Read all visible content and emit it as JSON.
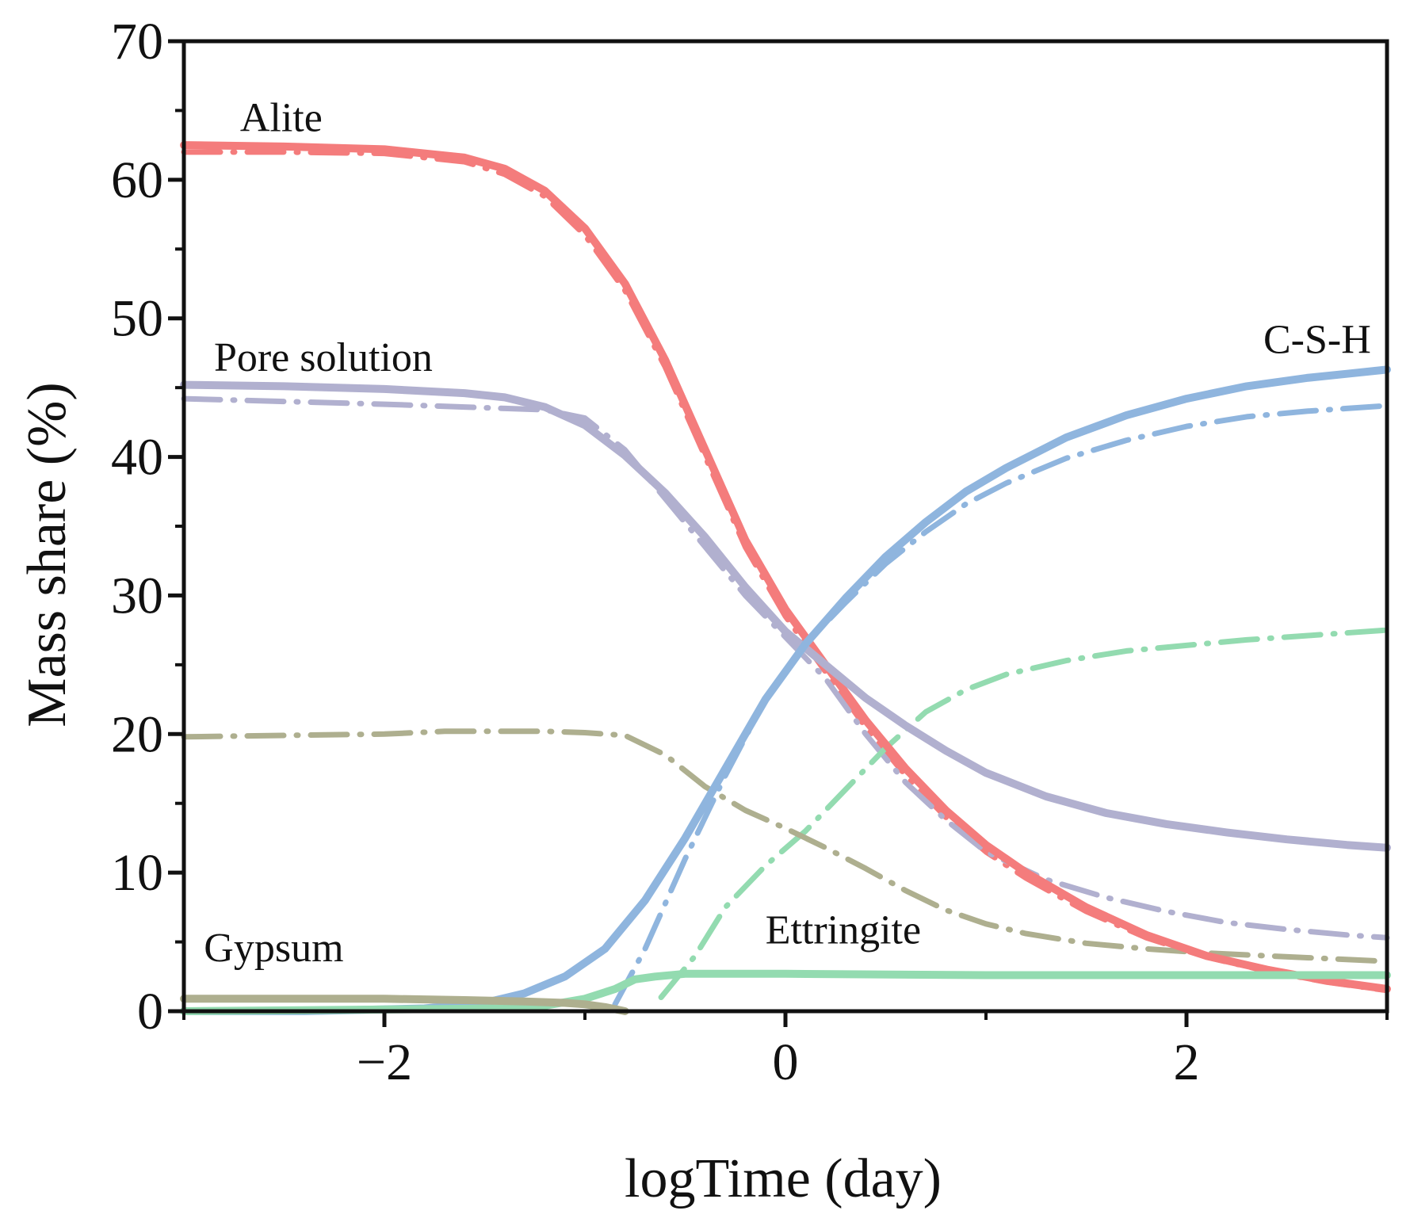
{
  "chart_data": {
    "type": "line",
    "xlabel": "logTime (day)",
    "ylabel": "Mass share (%)",
    "xlim": [
      -3,
      3
    ],
    "ylim": [
      0,
      70
    ],
    "xticks": [
      -2,
      0,
      2
    ],
    "xtick_labels": [
      "−2",
      "0",
      "2"
    ],
    "yticks": [
      0,
      10,
      20,
      30,
      40,
      50,
      60,
      70
    ],
    "ytick_labels": [
      "0",
      "10",
      "20",
      "30",
      "40",
      "50",
      "60",
      "70"
    ],
    "x_minor_ticks": [
      -3,
      -1,
      1,
      3
    ],
    "y_minor_ticks": [
      5,
      15,
      25,
      35,
      45,
      55,
      65
    ],
    "colors": {
      "alite": "#f47c7c",
      "pore_solution": "#b1b0cf",
      "csh": "#8fb5de",
      "ettringite": "#93dbb0",
      "gypsum": "#aeaf8f",
      "axis": "#111111"
    },
    "labels": [
      {
        "text": "Alite",
        "x": -2.72,
        "y": 63.5
      },
      {
        "text": "Pore solution",
        "x": -2.85,
        "y": 46.2
      },
      {
        "text": "C-S-H",
        "x": 2.92,
        "y": 47.5
      },
      {
        "text": "Ettringite",
        "x": -0.1,
        "y": 4.9
      },
      {
        "text": "Gypsum",
        "x": -2.9,
        "y": 3.6
      }
    ],
    "series": [
      {
        "name": "Alite",
        "color": "alite",
        "style": "solid",
        "x": [
          -3,
          -2.5,
          -2,
          -1.6,
          -1.4,
          -1.2,
          -1.0,
          -0.8,
          -0.6,
          -0.4,
          -0.2,
          0,
          0.2,
          0.4,
          0.6,
          0.8,
          1.0,
          1.2,
          1.5,
          1.8,
          2.1,
          2.4,
          2.7,
          3.0
        ],
        "y": [
          62.5,
          62.4,
          62.2,
          61.6,
          60.8,
          59.2,
          56.5,
          52.5,
          47.0,
          40.5,
          34.0,
          29.0,
          25.0,
          21.0,
          17.5,
          14.5,
          12.0,
          10.0,
          7.5,
          5.5,
          4.0,
          3.0,
          2.2,
          1.6
        ]
      },
      {
        "name": "Alite",
        "color": "alite",
        "style": "dashdot",
        "x": [
          -3,
          -2.5,
          -2,
          -1.6,
          -1.4,
          -1.2,
          -1.0,
          -0.8,
          -0.6,
          -0.4,
          -0.2,
          0,
          0.2,
          0.4,
          0.6,
          0.8,
          1.0,
          1.2,
          1.5,
          1.8,
          2.1,
          2.4,
          2.7,
          3.0
        ],
        "y": [
          62.0,
          62.0,
          61.9,
          61.3,
          60.4,
          58.8,
          56.0,
          52.0,
          46.5,
          40.0,
          33.5,
          28.5,
          24.5,
          20.5,
          17.0,
          14.0,
          11.5,
          9.6,
          7.2,
          5.3,
          3.9,
          2.9,
          2.1,
          1.5
        ]
      },
      {
        "name": "Pore solution",
        "color": "pore_solution",
        "style": "solid",
        "x": [
          -3,
          -2.5,
          -2,
          -1.6,
          -1.4,
          -1.2,
          -1.0,
          -0.8,
          -0.6,
          -0.4,
          -0.2,
          0,
          0.2,
          0.4,
          0.6,
          0.8,
          1.0,
          1.3,
          1.6,
          1.9,
          2.2,
          2.5,
          2.8,
          3.0
        ],
        "y": [
          45.2,
          45.1,
          44.9,
          44.6,
          44.3,
          43.6,
          42.3,
          40.1,
          37.4,
          34.2,
          30.6,
          27.4,
          25.0,
          22.6,
          20.6,
          18.8,
          17.2,
          15.5,
          14.3,
          13.5,
          12.9,
          12.4,
          12.0,
          11.8
        ]
      },
      {
        "name": "Pore solution",
        "color": "pore_solution",
        "style": "dashdot",
        "x": [
          -3,
          -2.5,
          -2,
          -1.6,
          -1.4,
          -1.2,
          -1.0,
          -0.8,
          -0.6,
          -0.4,
          -0.2,
          0,
          0.2,
          0.4,
          0.6,
          0.8,
          1.0,
          1.3,
          1.6,
          1.9,
          2.2,
          2.5,
          2.8,
          3.0
        ],
        "y": [
          44.2,
          44.0,
          43.8,
          43.6,
          43.5,
          43.4,
          42.8,
          40.5,
          37.0,
          33.5,
          30.0,
          27.0,
          24.0,
          20.0,
          16.5,
          13.8,
          11.5,
          9.5,
          8.2,
          7.2,
          6.4,
          5.9,
          5.5,
          5.3
        ]
      },
      {
        "name": "C-S-H",
        "color": "csh",
        "style": "solid",
        "x": [
          -3,
          -2.4,
          -1.8,
          -1.5,
          -1.3,
          -1.1,
          -0.9,
          -0.7,
          -0.5,
          -0.3,
          -0.1,
          0.1,
          0.3,
          0.5,
          0.7,
          0.9,
          1.1,
          1.4,
          1.7,
          2.0,
          2.3,
          2.6,
          2.8,
          3.0
        ],
        "y": [
          0,
          0,
          0.2,
          0.6,
          1.3,
          2.5,
          4.5,
          8.0,
          12.5,
          17.5,
          22.5,
          26.5,
          29.8,
          32.8,
          35.3,
          37.5,
          39.2,
          41.4,
          43.0,
          44.2,
          45.1,
          45.7,
          46.0,
          46.3
        ]
      },
      {
        "name": "C-S-H",
        "color": "csh",
        "style": "dashdot",
        "x": [
          -0.85,
          -0.7,
          -0.5,
          -0.3,
          -0.1,
          0.1,
          0.3,
          0.5,
          0.7,
          0.9,
          1.1,
          1.4,
          1.7,
          2.0,
          2.3,
          2.6,
          2.8,
          3.0
        ],
        "y": [
          0.5,
          4.5,
          11.0,
          17.0,
          22.5,
          26.5,
          29.5,
          32.3,
          34.6,
          36.6,
          38.1,
          39.9,
          41.2,
          42.2,
          42.9,
          43.3,
          43.5,
          43.7
        ]
      },
      {
        "name": "Ettringite",
        "color": "ettringite",
        "style": "solid",
        "x": [
          -3,
          -1.4,
          -1.2,
          -1.0,
          -0.85,
          -0.75,
          -0.65,
          -0.5,
          0,
          1.0,
          2.0,
          3.0
        ],
        "y": [
          0,
          0.2,
          0.4,
          0.9,
          1.6,
          2.3,
          2.5,
          2.7,
          2.7,
          2.6,
          2.6,
          2.6
        ]
      },
      {
        "name": "Ettringite",
        "color": "ettringite",
        "style": "dashdot",
        "x": [
          -0.62,
          -0.45,
          -0.3,
          -0.1,
          0.1,
          0.3,
          0.5,
          0.7,
          0.9,
          1.1,
          1.4,
          1.7,
          2.0,
          2.3,
          2.6,
          3.0
        ],
        "y": [
          1.0,
          4.0,
          7.5,
          10.5,
          13.0,
          16.0,
          19.0,
          21.6,
          23.2,
          24.3,
          25.3,
          26.0,
          26.4,
          26.8,
          27.1,
          27.5
        ]
      },
      {
        "name": "Gypsum",
        "color": "gypsum",
        "style": "solid",
        "x": [
          -3,
          -2.5,
          -2,
          -1.6,
          -1.3,
          -1.1,
          -1.0,
          -0.9,
          -0.8
        ],
        "y": [
          0.9,
          0.9,
          0.9,
          0.8,
          0.7,
          0.6,
          0.5,
          0.3,
          0.0
        ]
      },
      {
        "name": "Gypsum",
        "color": "gypsum",
        "style": "dashdot",
        "x": [
          -3,
          -2.5,
          -2,
          -1.7,
          -1.4,
          -1.2,
          -1.0,
          -0.8,
          -0.6,
          -0.4,
          -0.2,
          0,
          0.2,
          0.4,
          0.6,
          0.8,
          1.0,
          1.2,
          1.5,
          1.8,
          2.1,
          2.4,
          2.7,
          3.0
        ],
        "y": [
          19.8,
          19.9,
          20.0,
          20.2,
          20.2,
          20.2,
          20.1,
          19.9,
          18.5,
          16.2,
          14.5,
          13.2,
          11.8,
          10.3,
          8.7,
          7.3,
          6.3,
          5.6,
          4.9,
          4.5,
          4.2,
          4.0,
          3.8,
          3.6
        ]
      }
    ]
  }
}
